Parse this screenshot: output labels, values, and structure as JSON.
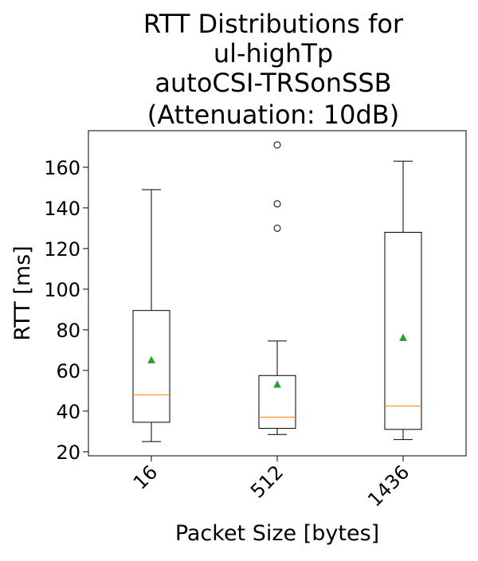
{
  "chart_data": {
    "type": "box",
    "title_lines": [
      "RTT Distributions for",
      "ul-highTp",
      "autoCSI-TRSonSSB",
      "(Attenuation: 10dB)"
    ],
    "xlabel": "Packet Size [bytes]",
    "ylabel": "RTT [ms]",
    "categories": [
      "16",
      "512",
      "1436"
    ],
    "ylim": [
      18,
      178
    ],
    "yticks": [
      20,
      40,
      60,
      80,
      100,
      120,
      140,
      160
    ],
    "grid": false,
    "boxes": [
      {
        "category": "16",
        "whisker_low": 25,
        "q1": 34.5,
        "median": 48,
        "q3": 89.5,
        "whisker_high": 149,
        "mean": 65,
        "outliers": []
      },
      {
        "category": "512",
        "whisker_low": 28.5,
        "q1": 31.5,
        "median": 37,
        "q3": 57.5,
        "whisker_high": 74.5,
        "mean": 53,
        "outliers": [
          130,
          142,
          171
        ]
      },
      {
        "category": "1436",
        "whisker_low": 26,
        "q1": 31,
        "median": 42.5,
        "q3": 128,
        "whisker_high": 163,
        "mean": 76,
        "outliers": []
      }
    ],
    "colors": {
      "box": "#000000",
      "median": "#ff7f0e",
      "mean": "#2ca02c"
    }
  }
}
